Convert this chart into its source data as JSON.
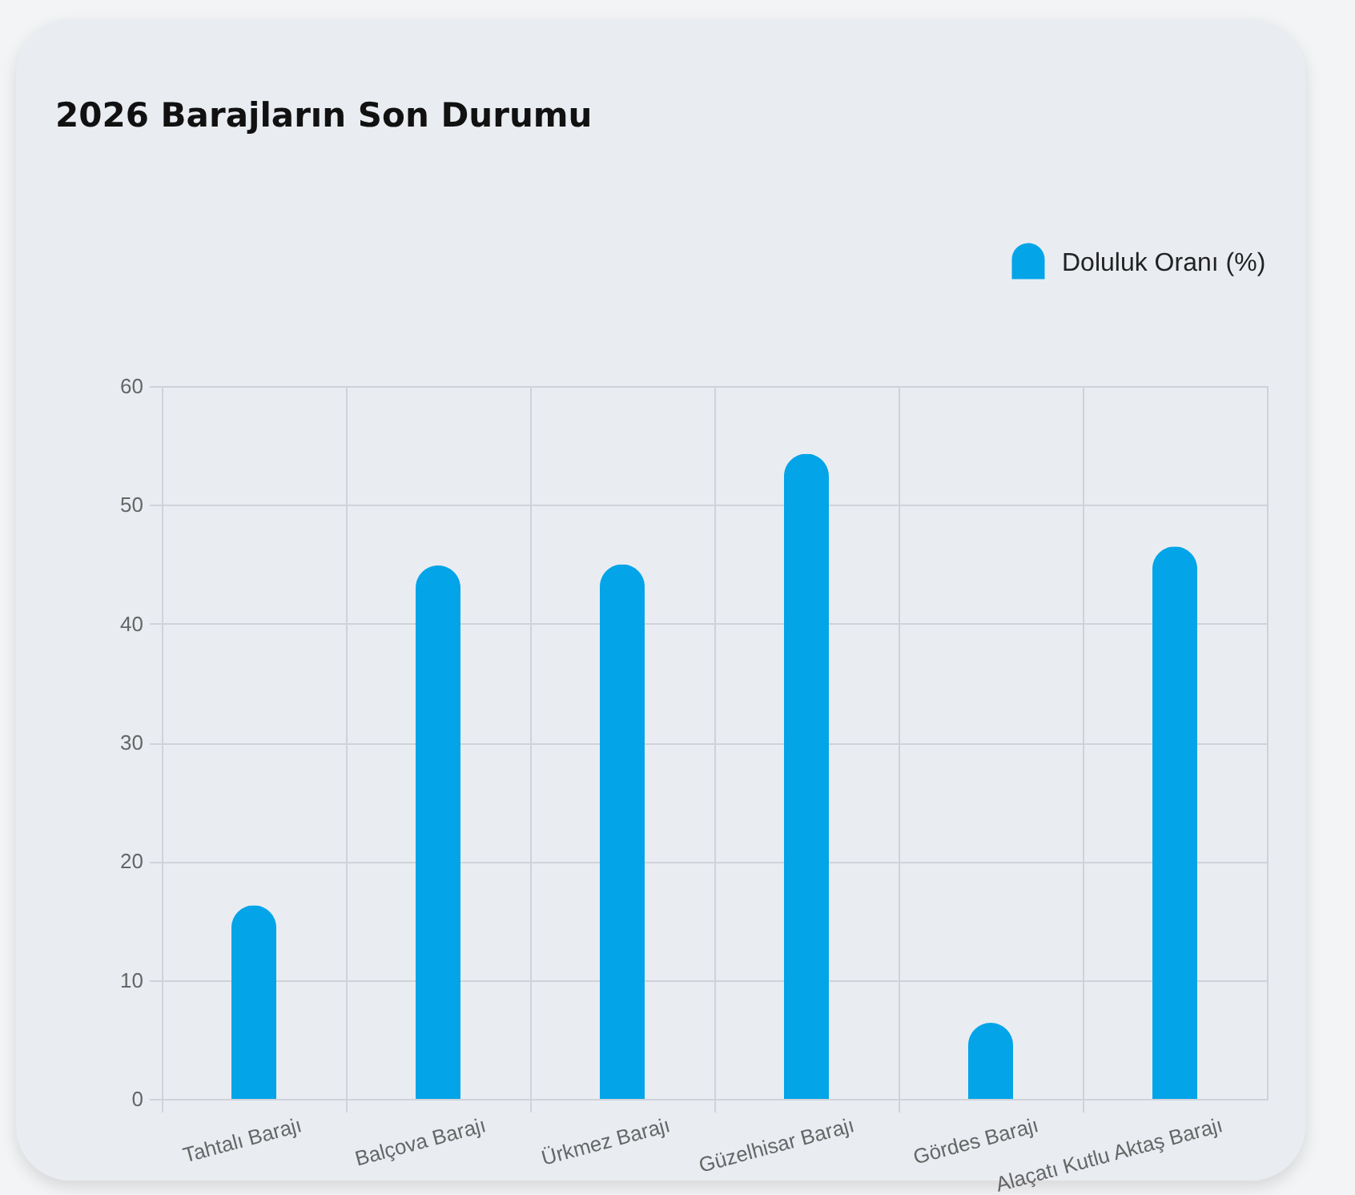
{
  "chart_data": {
    "type": "bar",
    "title": "2026 Barajların Son Durumu",
    "categories": [
      "Tahtalı Barajı",
      "Balçova Barajı",
      "Ürkmez Barajı",
      "Güzelhisar Barajı",
      "Gördes Barajı",
      "Alaçatı Kutlu Aktaş Barajı"
    ],
    "series": [
      {
        "name": "Doluluk Oranı (%)",
        "color": "#03a4e8",
        "values": [
          16.3,
          44.9,
          45.0,
          54.3,
          6.4,
          46.5
        ]
      }
    ],
    "ylim": [
      0,
      60
    ],
    "yticks": [
      0,
      10,
      20,
      30,
      40,
      50,
      60
    ],
    "grid": true,
    "legend": "top right"
  }
}
